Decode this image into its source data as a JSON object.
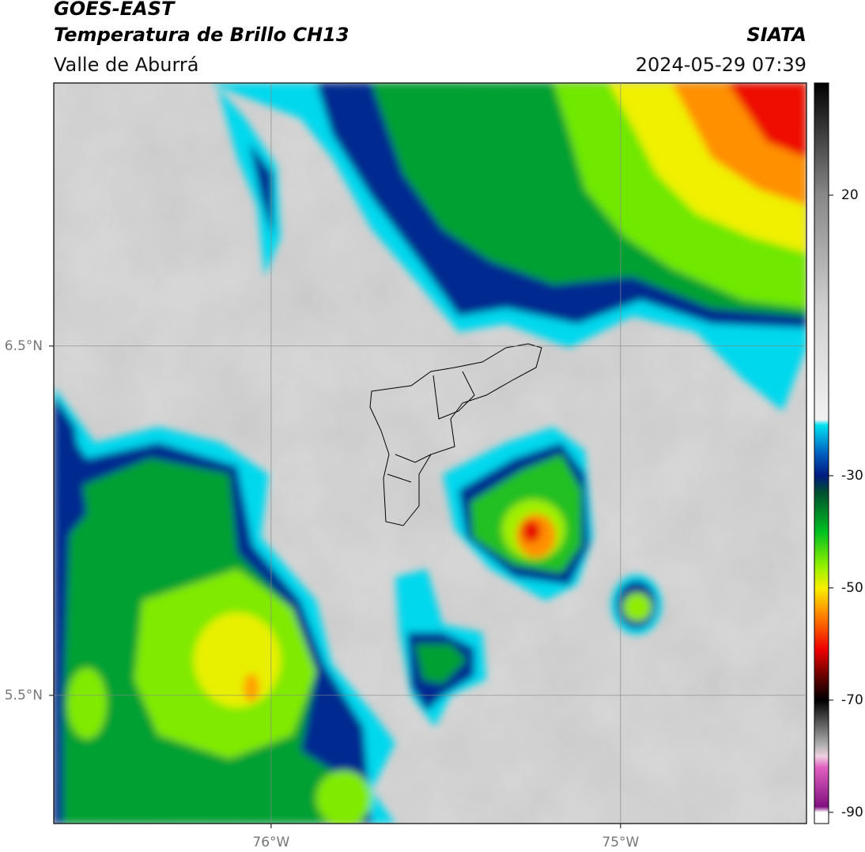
{
  "map": {
    "title": "GOES-EAST",
    "subtitle": "Temperatura de Brillo CH13",
    "region": "Valle de Aburrá",
    "source": "SIATA",
    "datetime": "2024-05-29 07:39",
    "xlim": [
      -76.622,
      -74.468
    ],
    "ylim": [
      5.133,
      7.253
    ],
    "xticks": [
      {
        "value": -76,
        "label": "76°W"
      },
      {
        "value": -75,
        "label": "75°W"
      }
    ],
    "yticks": [
      {
        "value": 6.5,
        "label": "6.5°N"
      },
      {
        "value": 5.5,
        "label": "5.5°N"
      }
    ],
    "grid": true,
    "colorbar": {
      "clim": [
        -92,
        40
      ],
      "ticks": [
        20,
        -30,
        -50,
        -70,
        -90
      ],
      "colormap": [
        {
          "value": 40,
          "color": "#000000"
        },
        {
          "value": 30,
          "color": "#444444"
        },
        {
          "value": 20,
          "color": "#888888"
        },
        {
          "value": 0,
          "color": "#cfcfcf"
        },
        {
          "value": -20,
          "color": "#f2f2f2"
        },
        {
          "value": -21,
          "color": "#00e0f0"
        },
        {
          "value": -26,
          "color": "#0060c0"
        },
        {
          "value": -30,
          "color": "#001a80"
        },
        {
          "value": -33,
          "color": "#005030"
        },
        {
          "value": -40,
          "color": "#00c020"
        },
        {
          "value": -46,
          "color": "#90f000"
        },
        {
          "value": -50,
          "color": "#f8f000"
        },
        {
          "value": -55,
          "color": "#ff8000"
        },
        {
          "value": -61,
          "color": "#ee0000"
        },
        {
          "value": -66,
          "color": "#600000"
        },
        {
          "value": -70,
          "color": "#000000"
        },
        {
          "value": -78,
          "color": "#b0b0b0"
        },
        {
          "value": -80,
          "color": "#f0d0e0"
        },
        {
          "value": -82,
          "color": "#e060c0"
        },
        {
          "value": -89,
          "color": "#801080"
        },
        {
          "value": -90,
          "color": "#ffffff"
        }
      ]
    }
  }
}
